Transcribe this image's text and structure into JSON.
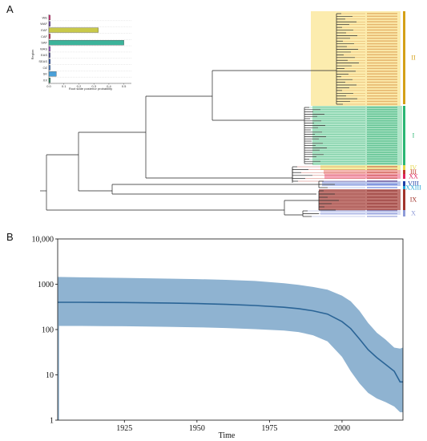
{
  "panels": {
    "a": "A",
    "b": "B"
  },
  "inset": {
    "ylabel": "Region",
    "xlabel": "Root state posterior probability",
    "xticks": [
      "0.0",
      "0.1",
      "0.2",
      "0.3",
      "0.4",
      "0.5"
    ]
  },
  "clades": [
    {
      "label": "II",
      "color": "#d4a017"
    },
    {
      "label": "I",
      "color": "#2bb673"
    },
    {
      "label": "IV",
      "color": "#e6d84a"
    },
    {
      "label": "III",
      "color": "#c0392b"
    },
    {
      "label": "XX",
      "color": "#e0245e"
    },
    {
      "label": "VIII",
      "color": "#1f3fa8"
    },
    {
      "label": "XXIII",
      "color": "#2aa7d6"
    },
    {
      "label": "IX",
      "color": "#a1342c"
    },
    {
      "label": "X",
      "color": "#8e9bd8"
    }
  ],
  "colors": {
    "band": "#8fb3d1",
    "line": "#2a6496",
    "tree": "#222222"
  },
  "chart_data": [
    {
      "type": "bar",
      "title": "",
      "xlabel": "Root state posterior probability",
      "ylabel": "Region",
      "categories": [
        "WE",
        "WAF",
        "EAF",
        "CAF",
        "SAF",
        "WAS",
        "EAS",
        "SEAS",
        "OZ",
        "SK",
        "XX"
      ],
      "values": [
        0.01,
        0.01,
        0.33,
        0.01,
        0.5,
        0.01,
        0.0,
        0.01,
        0.01,
        0.05,
        0.01
      ],
      "bar_colors": [
        "#d6337a",
        "#6f4aa8",
        "#c9c94a",
        "#c0395a",
        "#3cb39a",
        "#9a58c8",
        "#4a4a9a",
        "#3a5eb0",
        "#4d7fc4",
        "#4aa0d8",
        "#3a8a6a"
      ],
      "xlim": [
        0,
        0.55
      ]
    },
    {
      "type": "area",
      "title": "",
      "xlabel": "Time",
      "ylabel": "",
      "yscale": "log",
      "ylim": [
        1,
        10000
      ],
      "xlim": [
        1902,
        2021
      ],
      "xticks": [
        1925,
        1950,
        1975,
        2000
      ],
      "yticks": [
        1,
        10,
        100,
        1000,
        10000
      ],
      "ytick_labels": [
        "1",
        "10",
        "100",
        "1000",
        "10,000"
      ],
      "x": [
        1902,
        1910,
        1925,
        1940,
        1950,
        1960,
        1970,
        1980,
        1985,
        1990,
        1995,
        2000,
        2003,
        2006,
        2009,
        2012,
        2015,
        2018,
        2020,
        2021
      ],
      "median": [
        400,
        400,
        395,
        385,
        375,
        360,
        340,
        310,
        290,
        260,
        220,
        150,
        105,
        62,
        36,
        24,
        17,
        12,
        7,
        7
      ],
      "upper": [
        1450,
        1420,
        1380,
        1330,
        1300,
        1250,
        1180,
        1050,
        970,
        870,
        760,
        560,
        420,
        260,
        140,
        85,
        60,
        40,
        38,
        40
      ],
      "lower": [
        120,
        120,
        118,
        115,
        112,
        108,
        102,
        95,
        88,
        75,
        55,
        25,
        12,
        6.5,
        4,
        3,
        2.5,
        2,
        1.5,
        1.5
      ]
    }
  ]
}
